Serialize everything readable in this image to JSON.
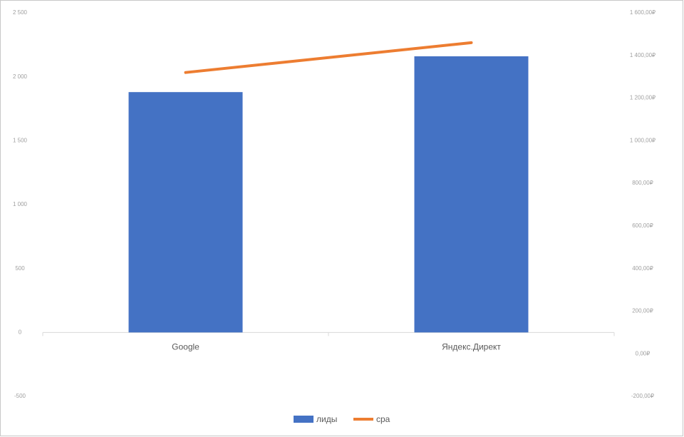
{
  "chart_data": {
    "type": "bar_line",
    "categories": [
      "Google",
      "Яндекс.Директ"
    ],
    "series": [
      {
        "name": "лиды",
        "type": "bar",
        "color": "#4472c4",
        "values": [
          1880,
          2160
        ]
      },
      {
        "name": "cpa",
        "type": "line",
        "color": "#ed7d31",
        "axis": "y2",
        "values": [
          1320,
          1460
        ]
      }
    ],
    "ylim": [
      -500,
      2500
    ],
    "yticks": [
      {
        "value": 2500,
        "label": "2 500"
      },
      {
        "value": 2000,
        "label": "2 000"
      },
      {
        "value": 1500,
        "label": "1 500"
      },
      {
        "value": 1000,
        "label": "1 000"
      },
      500,
      0,
      -500
    ],
    "y2lim": [
      -200,
      1600
    ],
    "y2ticks": [
      {
        "value": 1600,
        "label": "1 600,00₽"
      },
      {
        "value": 1400,
        "label": "1 400,00₽"
      },
      {
        "value": 1200,
        "label": "1 200,00₽"
      },
      {
        "value": 1000,
        "label": "1 000,00₽"
      },
      {
        "value": 800,
        "label": "800,00₽"
      },
      {
        "value": 600,
        "label": "600,00₽"
      },
      {
        "value": 400,
        "label": "400,00₽"
      },
      {
        "value": 200,
        "label": "200,00₽"
      },
      {
        "value": 0,
        "label": "0,00₽"
      },
      {
        "value": -200,
        "label": "-200,00₽"
      }
    ],
    "legend": "bottom"
  }
}
